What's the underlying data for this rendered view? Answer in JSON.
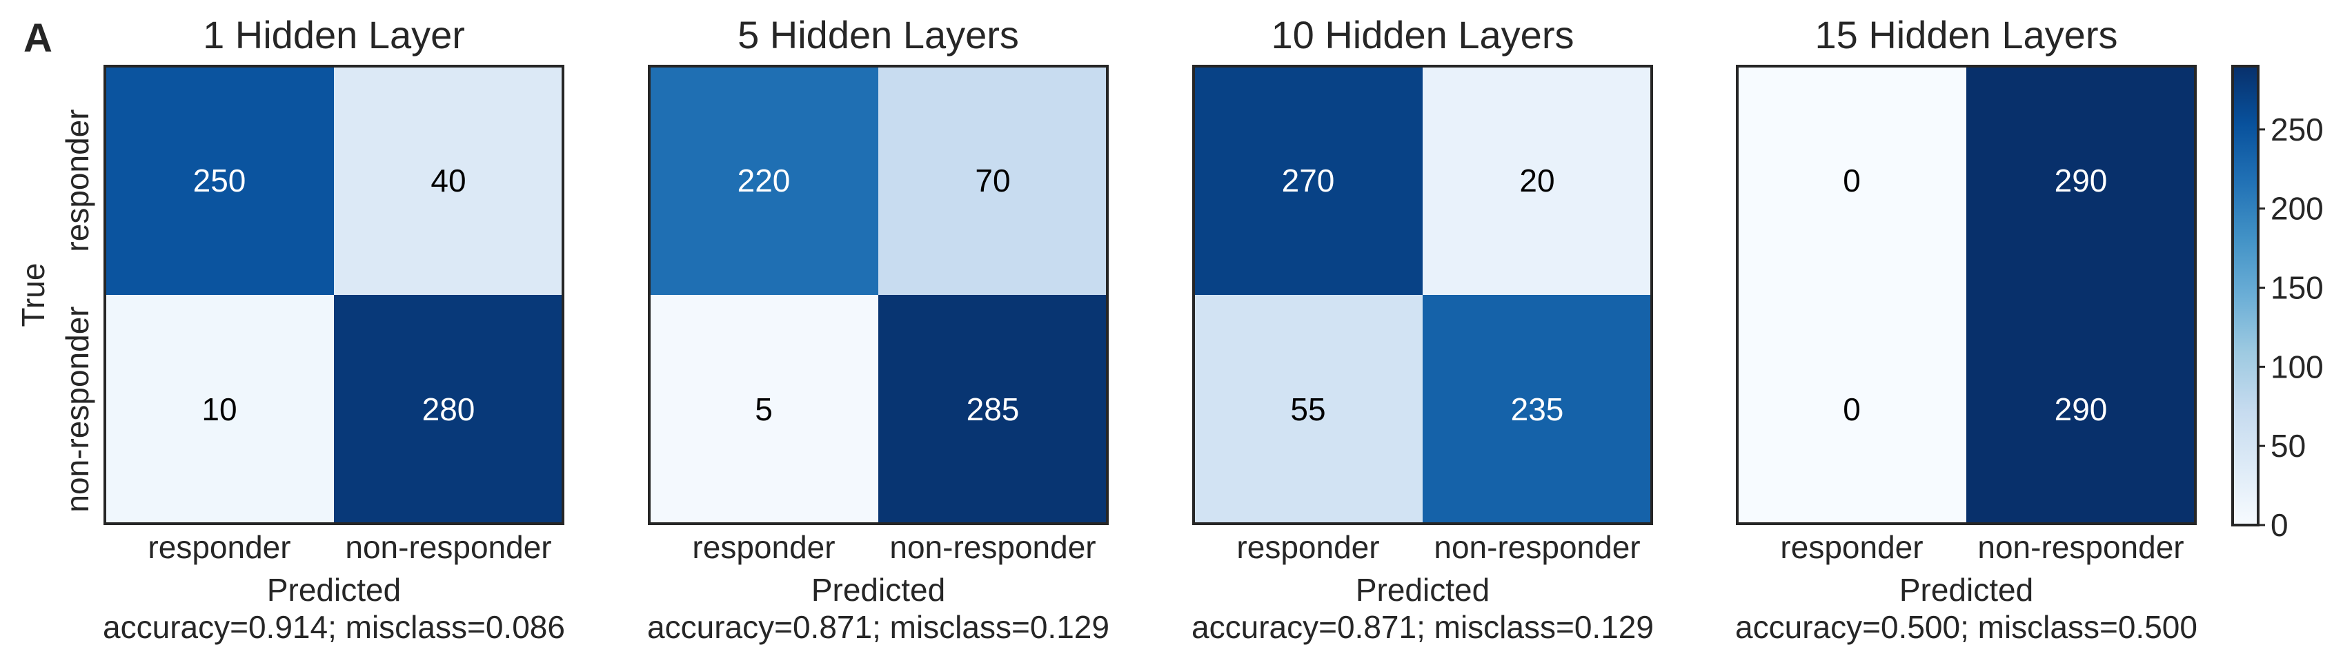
{
  "panel_letter": "A",
  "colors": {
    "colormap": "Blues",
    "low": "#f7fbff",
    "high": "#08306b",
    "text_on_light": "#000000",
    "text_on_dark": "#ffffff",
    "frame": "#262626"
  },
  "chart_data": [
    {
      "type": "heatmap",
      "title": "1 Hidden Layer",
      "x_categories": [
        "responder",
        "non-responder"
      ],
      "y_categories": [
        "responder",
        "non-responder"
      ],
      "xlabel": "Predicted",
      "ylabel": "True",
      "values": [
        [
          250,
          40
        ],
        [
          10,
          280
        ]
      ],
      "caption": "accuracy=0.914; misclass=0.086"
    },
    {
      "type": "heatmap",
      "title": "5 Hidden Layers",
      "x_categories": [
        "responder",
        "non-responder"
      ],
      "y_categories": [
        "",
        ""
      ],
      "xlabel": "Predicted",
      "ylabel": "",
      "values": [
        [
          220,
          70
        ],
        [
          5,
          285
        ]
      ],
      "caption": "accuracy=0.871; misclass=0.129"
    },
    {
      "type": "heatmap",
      "title": "10 Hidden Layers",
      "x_categories": [
        "responder",
        "non-responder"
      ],
      "y_categories": [
        "",
        ""
      ],
      "xlabel": "Predicted",
      "ylabel": "",
      "values": [
        [
          270,
          20
        ],
        [
          55,
          235
        ]
      ],
      "caption": "accuracy=0.871; misclass=0.129"
    },
    {
      "type": "heatmap",
      "title": "15 Hidden Layers",
      "x_categories": [
        "responder",
        "non-responder"
      ],
      "y_categories": [
        "",
        ""
      ],
      "xlabel": "Predicted",
      "ylabel": "",
      "values": [
        [
          0,
          290
        ],
        [
          0,
          290
        ]
      ],
      "caption": "accuracy=0.500; misclass=0.500"
    }
  ],
  "colorbar": {
    "ticks": [
      "0",
      "50",
      "100",
      "150",
      "200",
      "250"
    ],
    "range": [
      0,
      290
    ]
  }
}
